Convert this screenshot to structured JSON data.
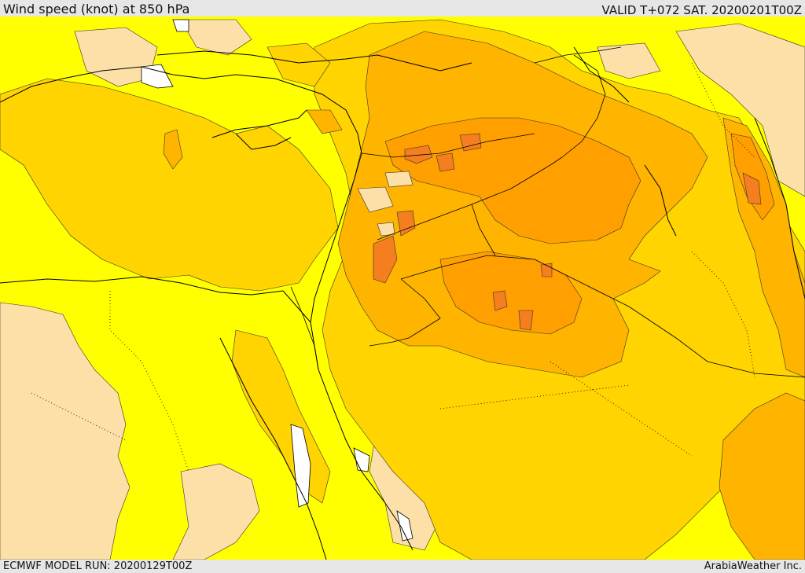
{
  "header": {
    "title": "Wind speed (knot) at 850 hPa",
    "valid_time": "VALID T+072 SAT. 20200201T00Z"
  },
  "footer": {
    "model_run": "ECMWF MODEL RUN: 20200129T00Z",
    "credit": "ArabiaWeather Inc."
  },
  "map": {
    "variable": "wind speed",
    "units": "knot",
    "level_hpa": 850,
    "colors": {
      "band_lowest": "#fde0a8",
      "band_low": "#ffff00",
      "band_mid": "#ffd400",
      "band_high": "#ffb400",
      "band_higher": "#ffa000",
      "band_highest": "#f57e1e",
      "water_gap": "#ffffff",
      "coastline": "#000000"
    }
  }
}
